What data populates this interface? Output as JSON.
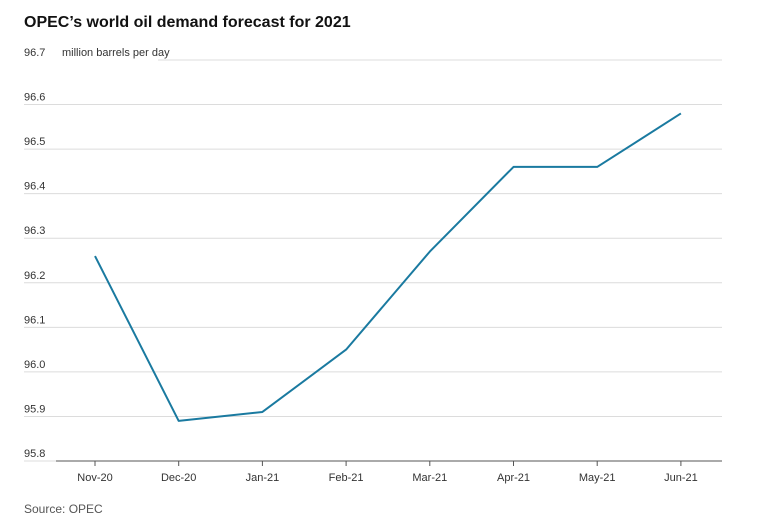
{
  "chart_data": {
    "type": "line",
    "title": "OPEC’s world oil demand forecast for 2021",
    "ylabel": "million barrels per day",
    "xlabel": "",
    "categories": [
      "Nov-20",
      "Dec-20",
      "Jan-21",
      "Feb-21",
      "Mar-21",
      "Apr-21",
      "May-21",
      "Jun-21"
    ],
    "series": [
      {
        "name": "",
        "values": [
          96.26,
          95.89,
          95.91,
          96.05,
          96.27,
          96.46,
          96.46,
          96.58
        ]
      }
    ],
    "ylim": [
      95.8,
      96.7
    ],
    "yticks": [
      "95.8",
      "95.9",
      "96.0",
      "96.1",
      "96.2",
      "96.3",
      "96.4",
      "96.5",
      "96.6",
      "96.7"
    ],
    "grid": true,
    "line_color": "#1a7aa0"
  },
  "source": "Source: OPEC"
}
